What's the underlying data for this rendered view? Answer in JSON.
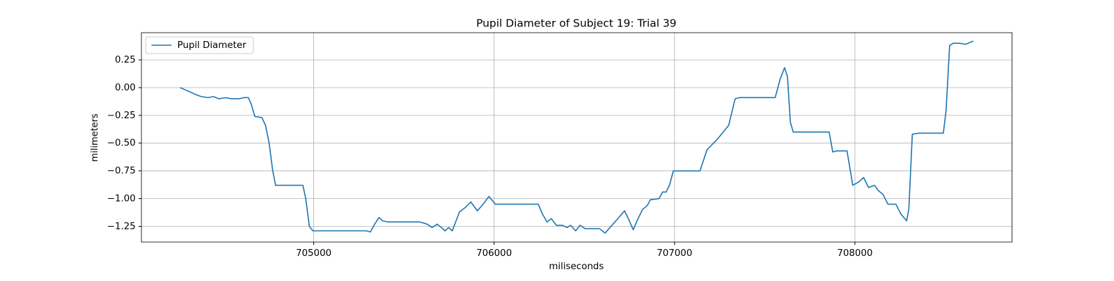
{
  "chart_data": {
    "type": "line",
    "title": "Pupil Diameter of Subject 19: Trial 39",
    "xlabel": "miliseconds",
    "ylabel": "milimeters",
    "x": [
      704260,
      704288,
      704316,
      704343,
      704375,
      704415,
      704443,
      704475,
      704515,
      704542,
      704586,
      704614,
      704638,
      704654,
      704674,
      704713,
      704733,
      704753,
      704773,
      704789,
      704853,
      704940,
      704956,
      704976,
      704996,
      705091,
      705290,
      705314,
      705338,
      705362,
      705382,
      705410,
      705489,
      705589,
      705629,
      705656,
      705684,
      705708,
      705728,
      705748,
      705768,
      705808,
      705840,
      705871,
      705907,
      705939,
      705971,
      706007,
      706126,
      706245,
      706265,
      706293,
      706317,
      706345,
      706377,
      706405,
      706424,
      706452,
      706476,
      706504,
      706584,
      706615,
      706675,
      706723,
      706747,
      706771,
      706795,
      706822,
      706850,
      706866,
      706914,
      706934,
      706954,
      706974,
      706993,
      707041,
      707141,
      707180,
      707240,
      707300,
      707336,
      707359,
      707479,
      707558,
      707586,
      707610,
      707626,
      707642,
      707658,
      707757,
      707857,
      707877,
      707897,
      707956,
      707988,
      708020,
      708048,
      708076,
      708108,
      708131,
      708155,
      708183,
      708227,
      708255,
      708287,
      708299,
      708318,
      708354,
      708434,
      708490,
      708505,
      708525,
      708545,
      708581,
      708613,
      708657
    ],
    "series": [
      {
        "name": "Pupil Diameter",
        "color": "#1f77b4",
        "values": [
          0,
          -0.02,
          -0.04,
          -0.06,
          -0.08,
          -0.09,
          -0.08,
          -0.1,
          -0.09,
          -0.1,
          -0.1,
          -0.09,
          -0.09,
          -0.15,
          -0.26,
          -0.27,
          -0.34,
          -0.5,
          -0.75,
          -0.88,
          -0.88,
          -0.88,
          -1.0,
          -1.25,
          -1.29,
          -1.29,
          -1.29,
          -1.3,
          -1.23,
          -1.17,
          -1.2,
          -1.21,
          -1.21,
          -1.21,
          -1.23,
          -1.26,
          -1.23,
          -1.26,
          -1.29,
          -1.26,
          -1.29,
          -1.12,
          -1.08,
          -1.03,
          -1.11,
          -1.05,
          -0.98,
          -1.05,
          -1.05,
          -1.05,
          -1.13,
          -1.21,
          -1.18,
          -1.24,
          -1.24,
          -1.26,
          -1.24,
          -1.29,
          -1.24,
          -1.27,
          -1.27,
          -1.31,
          -1.2,
          -1.11,
          -1.19,
          -1.28,
          -1.19,
          -1.1,
          -1.06,
          -1.01,
          -1.0,
          -0.94,
          -0.94,
          -0.87,
          -0.75,
          -0.75,
          -0.75,
          -0.56,
          -0.46,
          -0.34,
          -0.1,
          -0.09,
          -0.09,
          -0.09,
          0.08,
          0.18,
          0.1,
          -0.31,
          -0.4,
          -0.4,
          -0.4,
          -0.58,
          -0.57,
          -0.57,
          -0.88,
          -0.85,
          -0.81,
          -0.9,
          -0.88,
          -0.93,
          -0.96,
          -1.05,
          -1.05,
          -1.14,
          -1.2,
          -1.09,
          -0.42,
          -0.41,
          -0.41,
          -0.41,
          -0.21,
          0.38,
          0.4,
          0.4,
          0.39,
          0.42
        ]
      }
    ],
    "xlim": [
      704045,
      708871
    ],
    "ylim": [
      -1.391,
      0.495
    ],
    "xticks": [
      705000,
      706000,
      707000,
      708000
    ],
    "yticks": [
      {
        "value": -1.25,
        "label": "−1.25"
      },
      {
        "value": -1.0,
        "label": "−1.00"
      },
      {
        "value": -0.75,
        "label": "−0.75"
      },
      {
        "value": -0.5,
        "label": "−0.50"
      },
      {
        "value": -0.25,
        "label": "−0.25"
      },
      {
        "value": 0,
        "label": "0.00"
      },
      0.25
    ],
    "grid": true,
    "legend": "upper left"
  }
}
